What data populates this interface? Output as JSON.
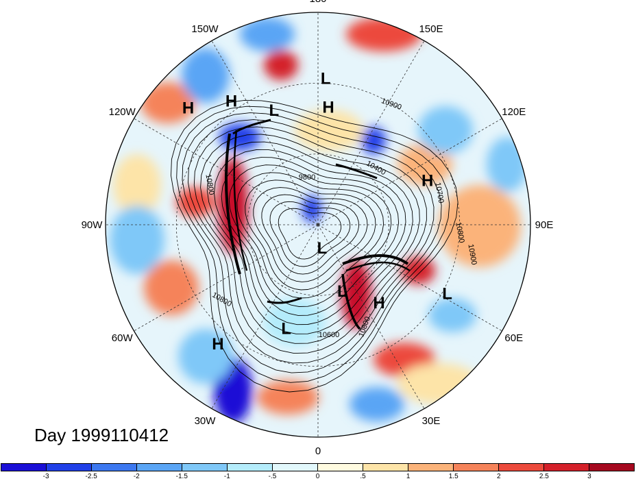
{
  "title": "Day 1999110412",
  "longitude_labels": [
    {
      "text": "90E",
      "lon": 90
    },
    {
      "text": "60E",
      "lon": 60
    },
    {
      "text": "30E",
      "lon": 30
    },
    {
      "text": "0",
      "lon": 0
    },
    {
      "text": "30W",
      "lon": -30
    },
    {
      "text": "60W",
      "lon": -60
    },
    {
      "text": "90W",
      "lon": -90
    },
    {
      "text": "120W",
      "lon": -120
    },
    {
      "text": "150W",
      "lon": -150
    },
    {
      "text": "180",
      "lon": 180
    },
    {
      "text": "150E",
      "lon": 150
    },
    {
      "text": "120E",
      "lon": 120
    }
  ],
  "pressure_centers": [
    {
      "type": "L",
      "lon": 62,
      "lat": 28
    },
    {
      "type": "H",
      "lon": 112,
      "lat": 40
    },
    {
      "type": "H",
      "lon": 38,
      "lat": 48
    },
    {
      "type": "L",
      "lon": 20,
      "lat": 60
    },
    {
      "type": "L",
      "lon": 10,
      "lat": 80
    },
    {
      "type": "L",
      "lon": 177,
      "lat": 28
    },
    {
      "type": "H",
      "lon": 175,
      "lat": 40
    },
    {
      "type": "L",
      "lon": -159,
      "lat": 38
    },
    {
      "type": "H",
      "lon": -145,
      "lat": 26
    },
    {
      "type": "H",
      "lon": -132,
      "lat": 16
    },
    {
      "type": "L",
      "lon": -17,
      "lat": 44
    },
    {
      "type": "H",
      "lon": -40,
      "lat": 24
    }
  ],
  "contour_labels": [
    "10900",
    "10400",
    "9800",
    "10700",
    "10800",
    "10900",
    "10800",
    "10800",
    "10800",
    "10600"
  ],
  "colorbar": {
    "colors": [
      "#1a0fd6",
      "#2040e8",
      "#3c78f0",
      "#5aa5f5",
      "#7fc8f8",
      "#b4ecfb",
      "#e2f8fc",
      "#fffbe0",
      "#fde4a8",
      "#fbb37a",
      "#f5835a",
      "#ec4a3c",
      "#d4202a",
      "#a5081f"
    ],
    "labels": [
      "-3",
      "-2.5",
      "-2",
      "-1.5",
      "-1",
      "-.5",
      "0",
      ".5",
      "1",
      "1.5",
      "2",
      "2.5",
      "3"
    ]
  }
}
